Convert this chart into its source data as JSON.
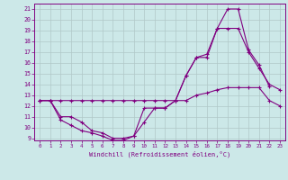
{
  "xlabel": "Windchill (Refroidissement éolien,°C)",
  "x": [
    0,
    1,
    2,
    3,
    4,
    5,
    6,
    7,
    8,
    9,
    10,
    11,
    12,
    13,
    14,
    15,
    16,
    17,
    18,
    19,
    20,
    21,
    22,
    23
  ],
  "line1": [
    12.5,
    12.5,
    12.5,
    12.5,
    12.5,
    12.5,
    12.5,
    12.5,
    12.5,
    12.5,
    12.5,
    12.5,
    12.5,
    12.5,
    12.5,
    13.0,
    13.2,
    13.5,
    13.7,
    13.7,
    13.7,
    13.7,
    12.5,
    12.0
  ],
  "line2": [
    12.5,
    12.5,
    10.7,
    10.2,
    9.7,
    9.5,
    9.2,
    8.8,
    8.8,
    9.2,
    11.8,
    11.8,
    11.8,
    12.5,
    14.8,
    16.5,
    16.5,
    19.2,
    21.0,
    21.0,
    17.2,
    15.8,
    13.8,
    null
  ],
  "line3": [
    12.5,
    12.5,
    11.0,
    11.0,
    10.5,
    9.7,
    9.5,
    9.0,
    9.0,
    9.2,
    10.5,
    11.8,
    11.8,
    12.5,
    14.8,
    16.5,
    16.8,
    19.2,
    19.2,
    19.2,
    17.0,
    15.5,
    14.0,
    13.5
  ],
  "color": "#800080",
  "bg_color": "#cce8e8",
  "grid_color": "#b0c8c8",
  "ylim": [
    8.8,
    21.5
  ],
  "xlim": [
    -0.5,
    23.5
  ],
  "yticks": [
    9,
    10,
    11,
    12,
    13,
    14,
    15,
    16,
    17,
    18,
    19,
    20,
    21
  ],
  "xticks": [
    0,
    1,
    2,
    3,
    4,
    5,
    6,
    7,
    8,
    9,
    10,
    11,
    12,
    13,
    14,
    15,
    16,
    17,
    18,
    19,
    20,
    21,
    22,
    23
  ]
}
